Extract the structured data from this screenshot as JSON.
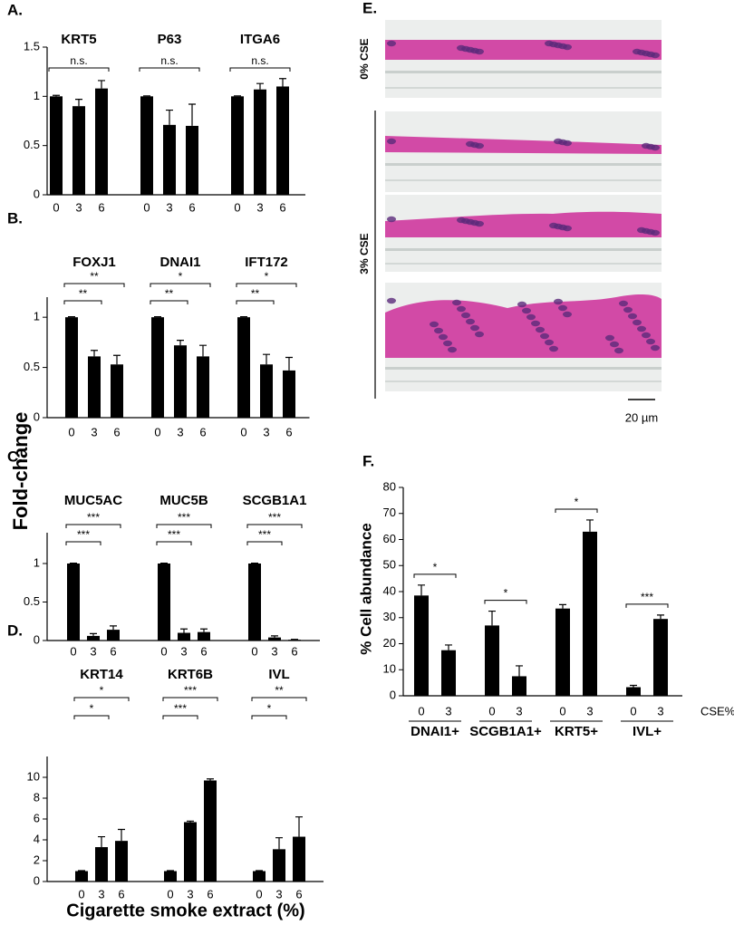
{
  "shared": {
    "ylabel": "Fold-change",
    "xlabel": "Cigarette smoke extract (%)"
  },
  "panel_e": {
    "panel": "E.",
    "label_top": "0% CSE",
    "label_bottom": "3% CSE",
    "scale": "20 µm"
  },
  "chart_data": [
    {
      "type": "bar",
      "panel": "A.",
      "categories": [
        0,
        3,
        6
      ],
      "color": "#000000",
      "ylim": [
        0,
        1.5
      ],
      "yticks": [
        0,
        0.5,
        1,
        1.5
      ],
      "groups": [
        {
          "name": "KRT5",
          "values": [
            1,
            0.9,
            1.08
          ],
          "errors": [
            0.01,
            0.07,
            0.08
          ],
          "significance": {
            "6": "n.s."
          }
        },
        {
          "name": "P63",
          "values": [
            1,
            0.71,
            0.7
          ],
          "errors": [
            0.005,
            0.15,
            0.22
          ],
          "significance": {
            "6": "n.s."
          }
        },
        {
          "name": "ITGA6",
          "values": [
            1,
            1.07,
            1.1
          ],
          "errors": [
            0.005,
            0.06,
            0.08
          ],
          "significance": {
            "6": "n.s."
          }
        }
      ]
    },
    {
      "type": "bar",
      "panel": "B.",
      "categories": [
        0,
        3,
        6
      ],
      "color": "#000000",
      "ylim": [
        0,
        1.2
      ],
      "yticks": [
        0,
        0.5,
        1
      ],
      "groups": [
        {
          "name": "FOXJ1",
          "values": [
            1,
            0.61,
            0.53
          ],
          "errors": [
            0.005,
            0.06,
            0.09
          ],
          "significance": {
            "3": "**",
            "6": "**"
          }
        },
        {
          "name": "DNAI1",
          "values": [
            1,
            0.72,
            0.61
          ],
          "errors": [
            0.005,
            0.05,
            0.11
          ],
          "significance": {
            "3": "**",
            "6": "*"
          }
        },
        {
          "name": "IFT172",
          "values": [
            1,
            0.53,
            0.47
          ],
          "errors": [
            0.005,
            0.1,
            0.13
          ],
          "significance": {
            "3": "**",
            "6": "*"
          }
        }
      ]
    },
    {
      "type": "bar",
      "panel": "C.",
      "categories": [
        0,
        3,
        6
      ],
      "color": "#000000",
      "ylim": [
        0,
        1.4
      ],
      "yticks": [
        0,
        0.5,
        1
      ],
      "groups": [
        {
          "name": "MUC5AC",
          "values": [
            1,
            0.06,
            0.14
          ],
          "errors": [
            0.005,
            0.03,
            0.05
          ],
          "significance": {
            "3": "***",
            "6": "***"
          }
        },
        {
          "name": "MUC5B",
          "values": [
            1,
            0.1,
            0.11
          ],
          "errors": [
            0.005,
            0.05,
            0.04
          ],
          "significance": {
            "3": "***",
            "6": "***"
          }
        },
        {
          "name": "SCGB1A1",
          "values": [
            1,
            0.04,
            0.01
          ],
          "errors": [
            0.005,
            0.02,
            0.005
          ],
          "significance": {
            "3": "***",
            "6": "***"
          }
        }
      ]
    },
    {
      "type": "bar",
      "panel": "D.",
      "categories": [
        0,
        3,
        6
      ],
      "color": "#000000",
      "ylim": [
        0,
        12
      ],
      "yticks": [
        0,
        2,
        4,
        6,
        8,
        10
      ],
      "groups": [
        {
          "name": "KRT14",
          "values": [
            1,
            3.3,
            3.9
          ],
          "errors": [
            0.05,
            1.0,
            1.1
          ],
          "significance": {
            "3": "*",
            "6": "*"
          }
        },
        {
          "name": "KRT6B",
          "values": [
            1,
            5.7,
            9.7
          ],
          "errors": [
            0.05,
            0.1,
            0.15
          ],
          "significance": {
            "3": "***",
            "6": "***"
          }
        },
        {
          "name": "IVL",
          "values": [
            1,
            3.1,
            4.3
          ],
          "errors": [
            0.05,
            1.1,
            1.9
          ],
          "significance": {
            "3": "*",
            "6": "**"
          }
        }
      ]
    },
    {
      "type": "bar",
      "panel": "F.",
      "categories": [
        0,
        3
      ],
      "color": "#000000",
      "ylabel": "% Cell abundance",
      "xlabel": "CSE%",
      "ylim": [
        0,
        80
      ],
      "yticks": [
        0,
        10,
        20,
        30,
        40,
        50,
        60,
        70,
        80
      ],
      "groups": [
        {
          "name": "DNAI1+",
          "values": [
            38.5,
            17.5
          ],
          "errors": [
            4,
            2
          ],
          "significance": {
            "3": "*"
          }
        },
        {
          "name": "SCGB1A1+",
          "values": [
            27,
            7.5
          ],
          "errors": [
            5.5,
            4
          ],
          "significance": {
            "3": "*"
          }
        },
        {
          "name": "KRT5+",
          "values": [
            33.5,
            63
          ],
          "errors": [
            1.5,
            4.5
          ],
          "significance": {
            "3": "*"
          }
        },
        {
          "name": "IVL+",
          "values": [
            3.3,
            29.5
          ],
          "errors": [
            0.7,
            1.5
          ],
          "significance": {
            "3": "***"
          }
        }
      ]
    }
  ]
}
